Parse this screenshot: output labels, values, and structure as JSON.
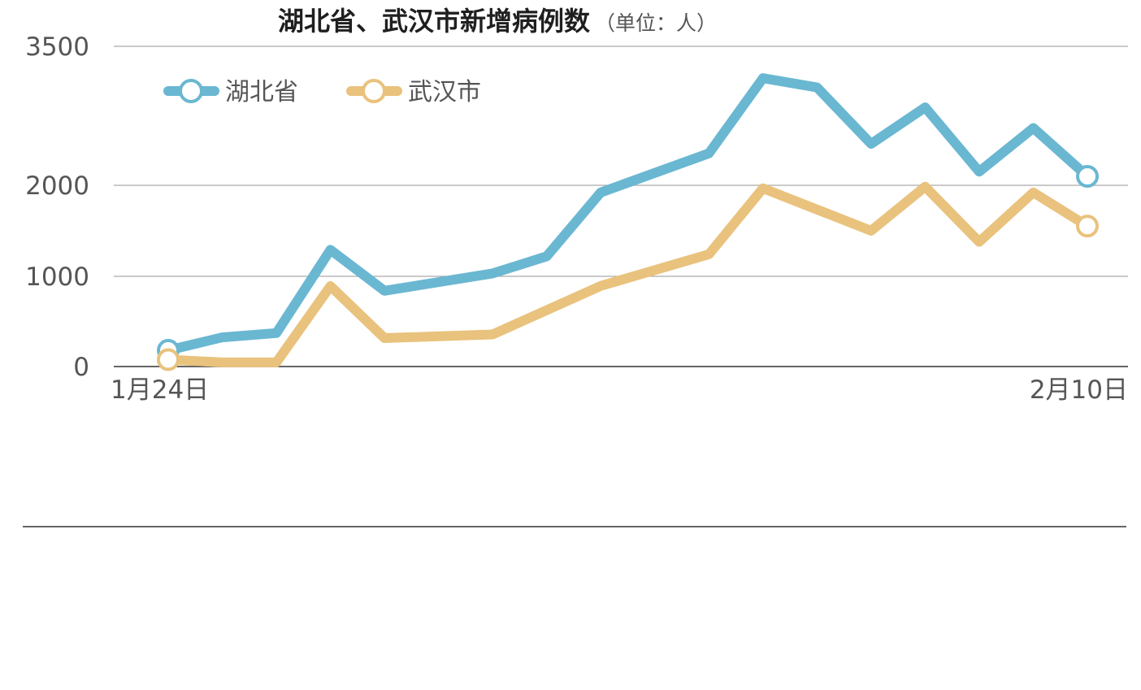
{
  "chart_data": {
    "type": "line",
    "title": "湖北省、武汉市新增病例数",
    "subtitle": "（单位：人）",
    "xlabel": "",
    "ylabel": "",
    "x_ticks": [
      "1月24日",
      "2月10日"
    ],
    "y_ticks": [
      0,
      1000,
      2000,
      3500
    ],
    "ylim": [
      0,
      3500
    ],
    "y_scale": "piecewise-linear",
    "grid": true,
    "legend_position": "top-left",
    "x": [
      "1月24日",
      "1月25日",
      "1月26日",
      "1月27日",
      "1月28日",
      "1月29日",
      "1月30日",
      "1月31日",
      "2月1日",
      "2月2日",
      "2月3日",
      "2月4日",
      "2月5日",
      "2月6日",
      "2月7日",
      "2月8日",
      "2月9日",
      "2月10日"
    ],
    "series": [
      {
        "name": "湖北省",
        "color": "#6ab7d2",
        "values": [
          180,
          323,
          371,
          1291,
          840,
          null,
          1032,
          1220,
          1921,
          null,
          2345,
          3156,
          3056,
          2447,
          2841,
          2147,
          2618,
          2097
        ]
      },
      {
        "name": "武汉市",
        "color": "#e9c27d",
        "values": [
          77,
          46,
          46,
          892,
          315,
          null,
          356,
          null,
          894,
          null,
          1242,
          1967,
          null,
          1501,
          1985,
          1379,
          1921,
          1552
        ]
      }
    ]
  }
}
